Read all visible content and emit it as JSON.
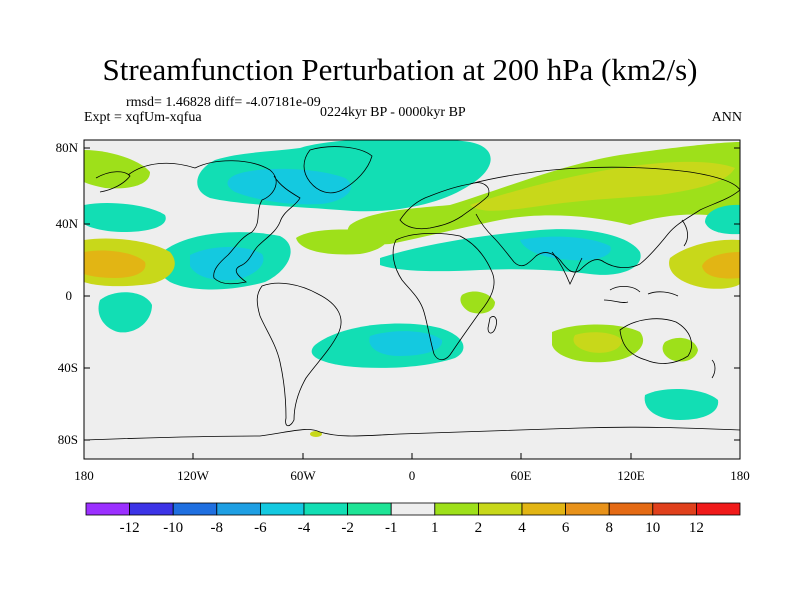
{
  "title": "Streamfunction Perturbation at 200 hPa (km2/s)",
  "stats": "rmsd= 1.46828 diff= -4.07181e-09",
  "experiment": "Expt = xqfUm-xqfua",
  "period": "0224kyr BP - 0000kyr BP",
  "season": "ANN",
  "lat_labels": [
    "80N",
    "40N",
    "0",
    "40S",
    "80S"
  ],
  "lon_labels": [
    "180",
    "120W",
    "60W",
    "0",
    "60E",
    "120E",
    "180"
  ],
  "colorbar": {
    "labels": [
      "-12",
      "-10",
      "-8",
      "-6",
      "-4",
      "-2",
      "-1",
      "1",
      "2",
      "4",
      "6",
      "8",
      "10",
      "12"
    ],
    "colors": [
      "#9b30ff",
      "#3c33e6",
      "#1f6fe0",
      "#1e9fe3",
      "#14c9e0",
      "#12deb4",
      "#1ee496",
      "#eeeeee",
      "#9ee01a",
      "#c8d81a",
      "#e2b514",
      "#e8921a",
      "#e46a14",
      "#e0401c",
      "#f01a1a"
    ]
  },
  "colors": {
    "background": "#ffffff",
    "map_background": "#eeeeee",
    "coastline": "#000000"
  }
}
